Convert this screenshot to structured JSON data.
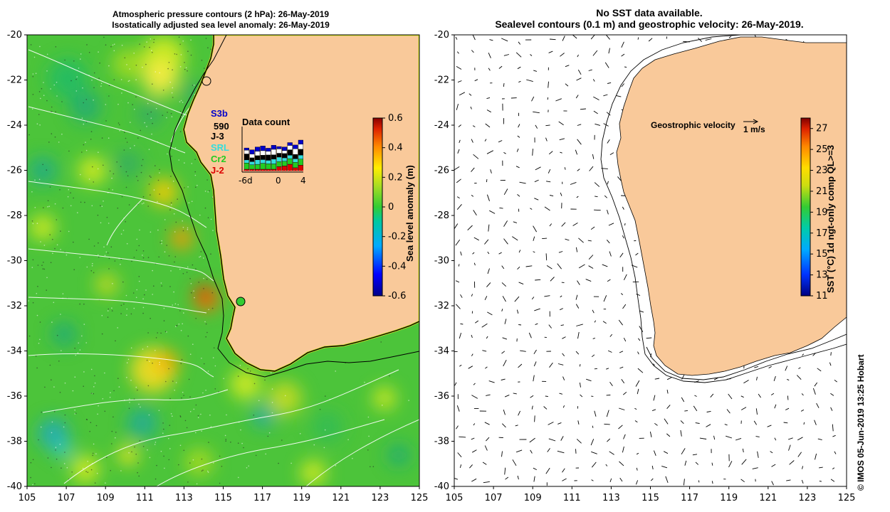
{
  "left_panel": {
    "title_line1": "Atmospheric pressure contours (2 hPa): 26-May-2019",
    "title_line2": "Isostatically adjusted sea level anomaly: 26-May-2019",
    "y_ticks": [
      "-20",
      "-22",
      "-24",
      "-26",
      "-28",
      "-30",
      "-32",
      "-34",
      "-36",
      "-38",
      "-40"
    ],
    "x_ticks": [
      "105",
      "107",
      "109",
      "111",
      "113",
      "115",
      "117",
      "119",
      "121",
      "123",
      "125"
    ],
    "colorbar": {
      "label": "Sea level anomaly (m)",
      "ticks": [
        "0.6",
        "0.4",
        "0.2",
        "0",
        "-0.2",
        "-0.4",
        "-0.6"
      ],
      "range": [
        -0.6,
        0.6
      ]
    },
    "legend": {
      "satellites": [
        {
          "name": "S3b",
          "color": "#0000cc"
        },
        {
          "name": "590",
          "color": "#000000"
        },
        {
          "name": "J-3",
          "color": "#000000"
        },
        {
          "name": "SRL",
          "color": "#33dddd"
        },
        {
          "name": "Cr2",
          "color": "#22cc22"
        },
        {
          "name": "J-2",
          "color": "#dd0000"
        }
      ],
      "data_count_title": "Data count",
      "data_count_ticks": [
        "-6d",
        "0",
        "4"
      ]
    }
  },
  "right_panel": {
    "title_line1": "No SST data available.",
    "title_line2": "Sealevel contours (0.1 m) and geostrophic velocity: 26-May-2019.",
    "y_ticks": [
      "-20",
      "-22",
      "-24",
      "-26",
      "-28",
      "-30",
      "-32",
      "-34",
      "-36",
      "-38",
      "-40"
    ],
    "x_ticks": [
      "105",
      "107",
      "109",
      "111",
      "113",
      "115",
      "117",
      "119",
      "121",
      "123",
      "125"
    ],
    "velocity_label": "Geostrophic velocity",
    "velocity_scale": "1 m/s",
    "colorbar": {
      "label": "SST (°C) 1d ngt-only comp QL>=3",
      "ticks": [
        "27",
        "25",
        "23",
        "21",
        "19",
        "17",
        "15",
        "13",
        "11"
      ],
      "range": [
        11,
        28
      ]
    }
  },
  "credit": "© IMOS 05-Jun-2019 13:25 Hobart",
  "colors": {
    "land": "#f9c99a",
    "ocean_anomaly": "#4cc43a",
    "land_outline": "#000000"
  }
}
